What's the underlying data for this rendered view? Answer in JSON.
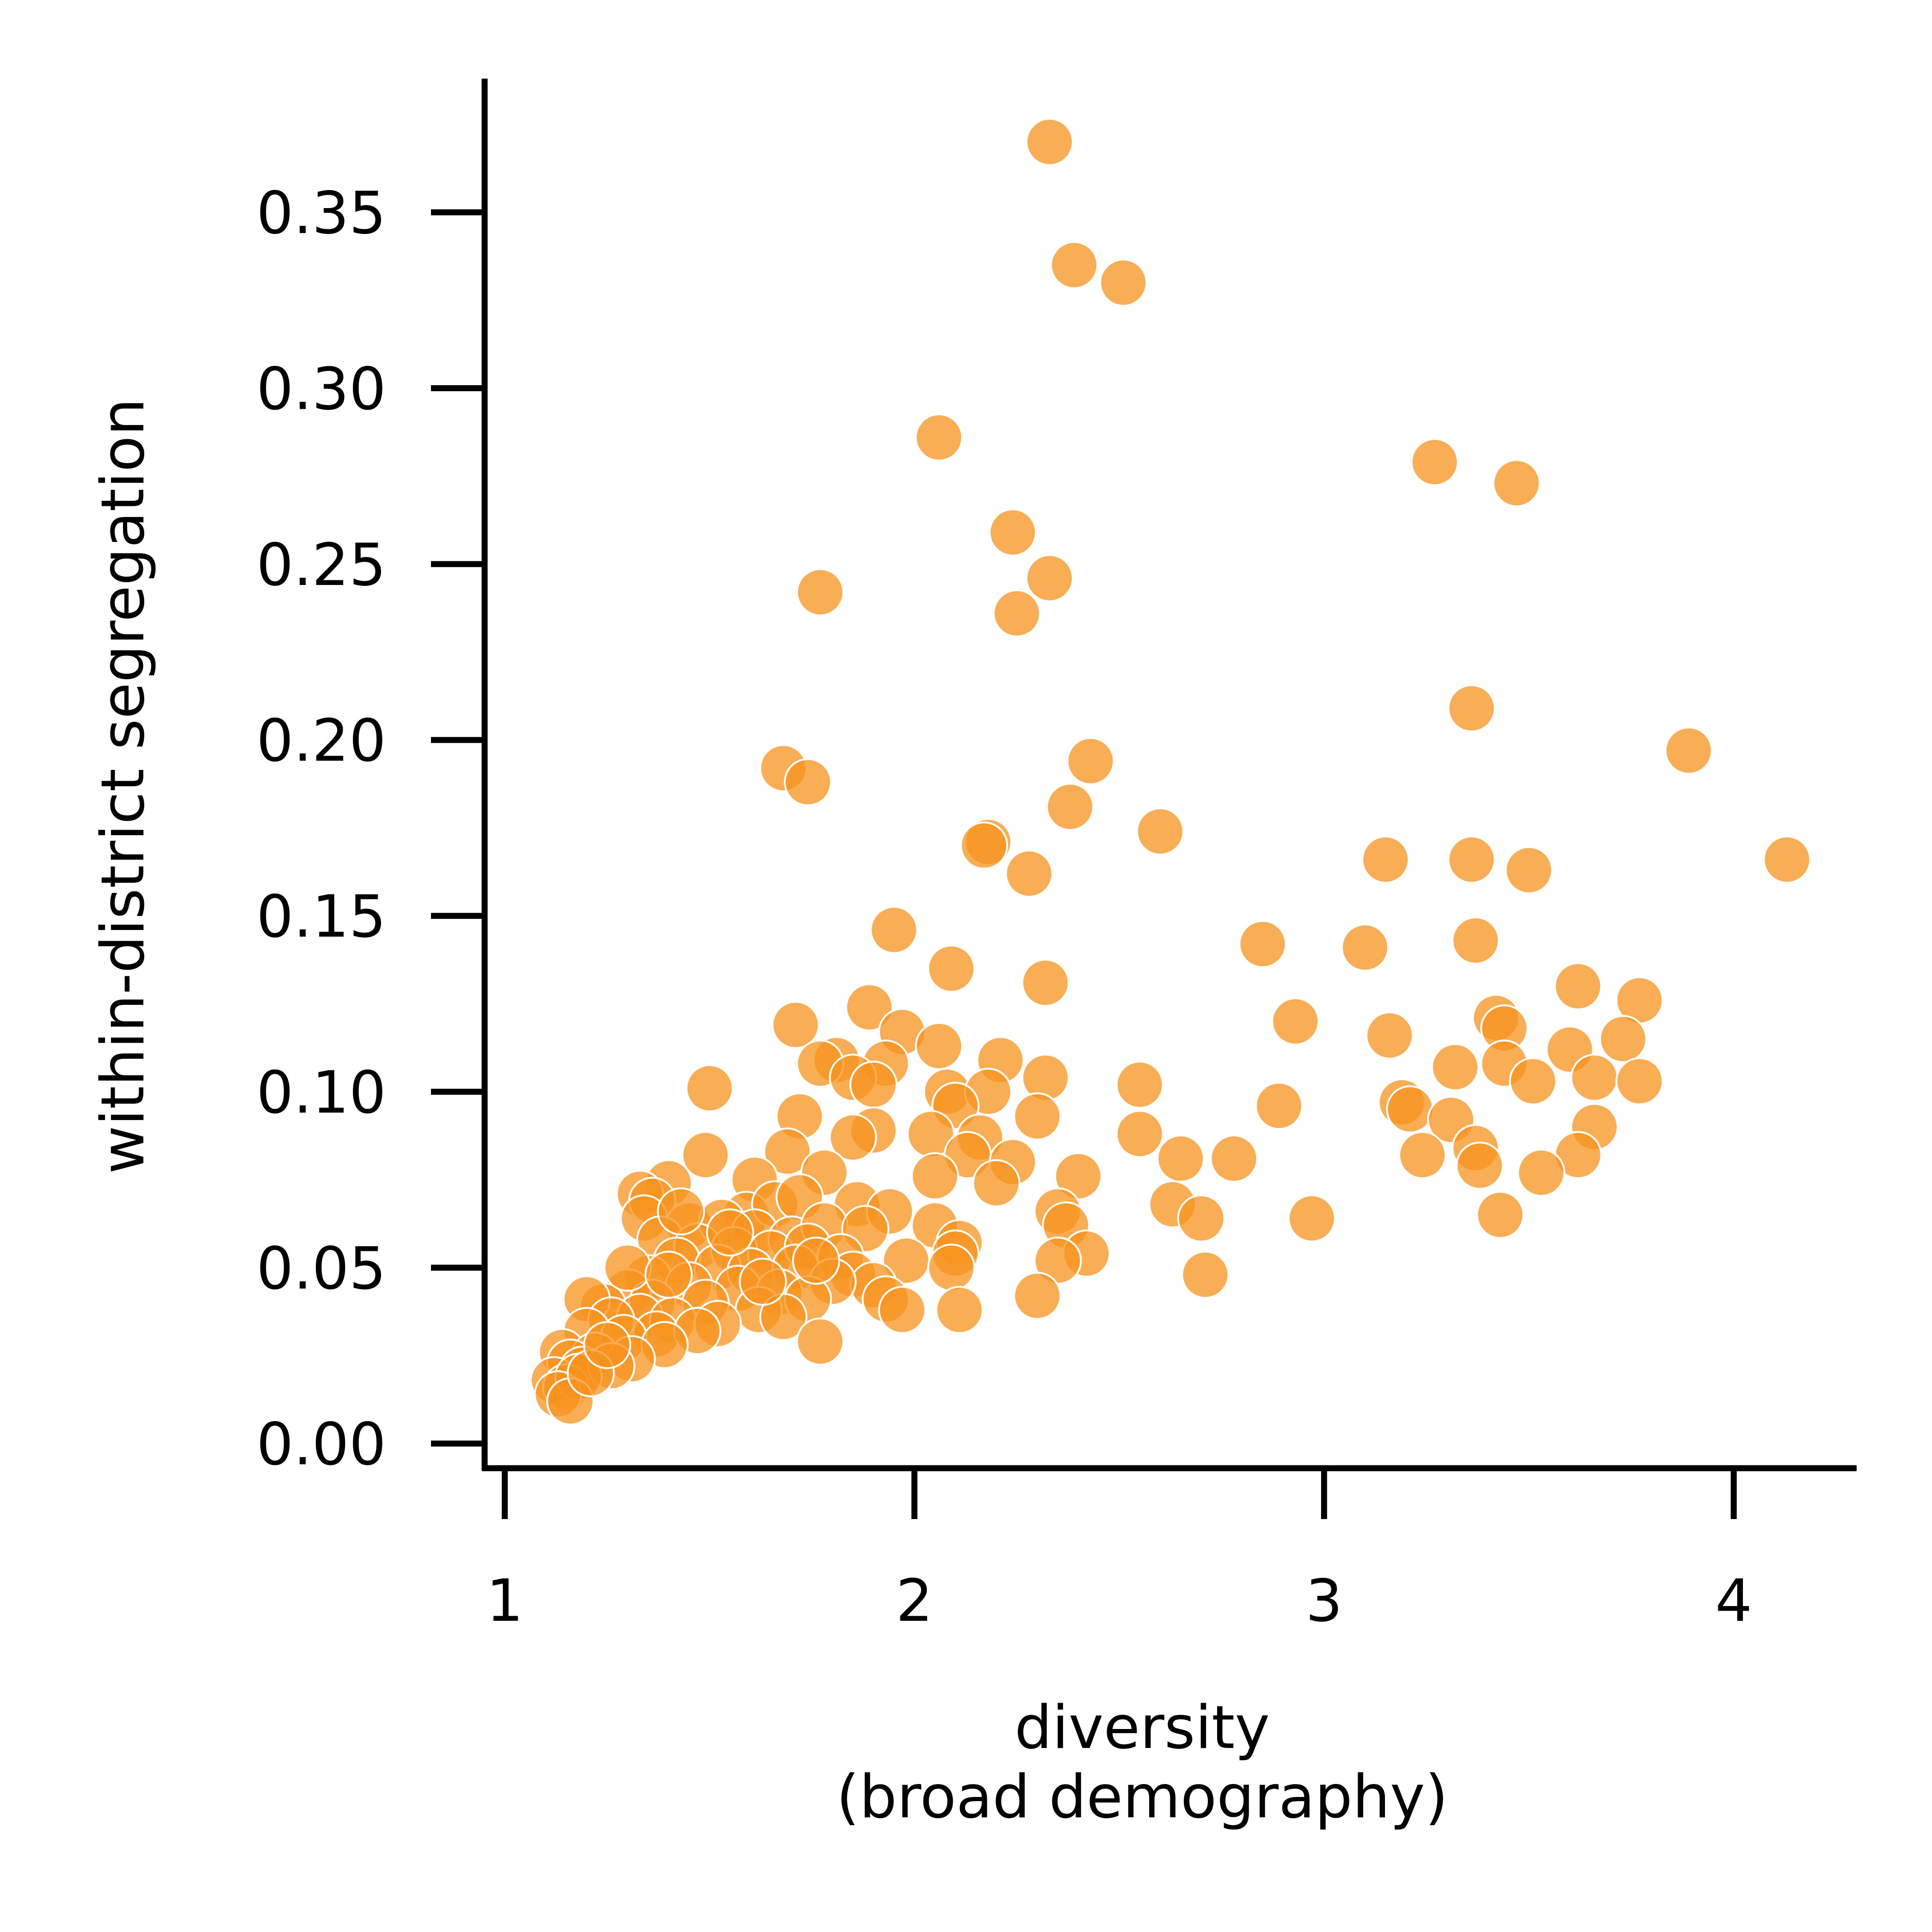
{
  "chart_data": {
    "type": "scatter",
    "title": "",
    "xlabel_lines": [
      "diversity",
      "(broad demography)"
    ],
    "ylabel": "within-district segregation",
    "xlim": [
      0.97,
      4.3
    ],
    "ylim": [
      -0.007,
      0.388
    ],
    "xticks": [
      1,
      2,
      3,
      4
    ],
    "xtick_labels": [
      "1",
      "2",
      "3",
      "4"
    ],
    "yticks": [
      0.0,
      0.05,
      0.1,
      0.15,
      0.2,
      0.25,
      0.3,
      0.35
    ],
    "ytick_labels": [
      "0.00",
      "0.05",
      "0.10",
      "0.15",
      "0.20",
      "0.25",
      "0.30",
      "0.35"
    ],
    "grid": false,
    "legend": "none",
    "colors": {
      "marker_fill": "#f7931e",
      "marker_edge": "#ffffff",
      "axis": "#000000"
    },
    "series": [
      {
        "name": "districts",
        "points": [
          [
            2.33,
            0.37
          ],
          [
            2.39,
            0.335
          ],
          [
            2.51,
            0.33
          ],
          [
            2.06,
            0.286
          ],
          [
            3.27,
            0.279
          ],
          [
            3.47,
            0.273
          ],
          [
            2.24,
            0.259
          ],
          [
            2.33,
            0.246
          ],
          [
            2.25,
            0.236
          ],
          [
            1.77,
            0.242
          ],
          [
            3.36,
            0.209
          ],
          [
            3.89,
            0.197
          ],
          [
            1.68,
            0.192
          ],
          [
            1.74,
            0.188
          ],
          [
            2.43,
            0.194
          ],
          [
            2.38,
            0.181
          ],
          [
            2.6,
            0.174
          ],
          [
            2.18,
            0.171
          ],
          [
            2.17,
            0.17
          ],
          [
            2.28,
            0.162
          ],
          [
            3.15,
            0.166
          ],
          [
            3.36,
            0.166
          ],
          [
            3.5,
            0.163
          ],
          [
            4.13,
            0.166
          ],
          [
            1.95,
            0.146
          ],
          [
            2.09,
            0.135
          ],
          [
            2.85,
            0.142
          ],
          [
            3.1,
            0.141
          ],
          [
            3.37,
            0.143
          ],
          [
            2.32,
            0.131
          ],
          [
            3.62,
            0.13
          ],
          [
            3.77,
            0.126
          ],
          [
            1.89,
            0.124
          ],
          [
            1.71,
            0.119
          ],
          [
            1.97,
            0.117
          ],
          [
            2.93,
            0.12
          ],
          [
            3.42,
            0.121
          ],
          [
            3.16,
            0.116
          ],
          [
            3.44,
            0.118
          ],
          [
            2.06,
            0.113
          ],
          [
            1.81,
            0.109
          ],
          [
            1.93,
            0.108
          ],
          [
            2.21,
            0.109
          ],
          [
            3.6,
            0.112
          ],
          [
            3.73,
            0.115
          ],
          [
            1.77,
            0.108
          ],
          [
            1.85,
            0.104
          ],
          [
            1.9,
            0.102
          ],
          [
            2.08,
            0.1
          ],
          [
            2.32,
            0.104
          ],
          [
            3.32,
            0.107
          ],
          [
            3.44,
            0.108
          ],
          [
            3.51,
            0.103
          ],
          [
            3.66,
            0.104
          ],
          [
            3.77,
            0.103
          ],
          [
            1.5,
            0.101
          ],
          [
            2.55,
            0.102
          ],
          [
            2.18,
            0.1
          ],
          [
            2.1,
            0.096
          ],
          [
            2.89,
            0.096
          ],
          [
            3.19,
            0.097
          ],
          [
            3.21,
            0.095
          ],
          [
            1.72,
            0.093
          ],
          [
            1.9,
            0.089
          ],
          [
            2.04,
            0.088
          ],
          [
            2.16,
            0.087
          ],
          [
            2.3,
            0.093
          ],
          [
            2.55,
            0.088
          ],
          [
            3.31,
            0.092
          ],
          [
            3.66,
            0.09
          ],
          [
            1.85,
            0.087
          ],
          [
            2.13,
            0.082
          ],
          [
            2.24,
            0.08
          ],
          [
            2.65,
            0.081
          ],
          [
            2.78,
            0.081
          ],
          [
            3.24,
            0.082
          ],
          [
            3.37,
            0.084
          ],
          [
            3.62,
            0.082
          ],
          [
            1.49,
            0.082
          ],
          [
            1.69,
            0.083
          ],
          [
            1.78,
            0.077
          ],
          [
            1.61,
            0.075
          ],
          [
            2.05,
            0.076
          ],
          [
            2.2,
            0.074
          ],
          [
            2.4,
            0.076
          ],
          [
            3.38,
            0.079
          ],
          [
            3.53,
            0.077
          ],
          [
            1.4,
            0.074
          ],
          [
            1.33,
            0.071
          ],
          [
            1.36,
            0.069
          ],
          [
            1.59,
            0.065
          ],
          [
            1.66,
            0.068
          ],
          [
            1.72,
            0.07
          ],
          [
            1.86,
            0.068
          ],
          [
            1.94,
            0.066
          ],
          [
            2.63,
            0.068
          ],
          [
            2.7,
            0.064
          ],
          [
            2.97,
            0.064
          ],
          [
            3.43,
            0.065
          ],
          [
            2.35,
            0.066
          ],
          [
            2.37,
            0.062
          ],
          [
            1.34,
            0.064
          ],
          [
            1.45,
            0.062
          ],
          [
            1.53,
            0.063
          ],
          [
            1.61,
            0.06
          ],
          [
            1.7,
            0.058
          ],
          [
            1.78,
            0.062
          ],
          [
            1.88,
            0.061
          ],
          [
            2.05,
            0.062
          ],
          [
            2.11,
            0.057
          ],
          [
            1.38,
            0.058
          ],
          [
            1.47,
            0.056
          ],
          [
            1.56,
            0.055
          ],
          [
            1.65,
            0.054
          ],
          [
            1.74,
            0.056
          ],
          [
            1.82,
            0.053
          ],
          [
            1.98,
            0.052
          ],
          [
            2.1,
            0.054
          ],
          [
            2.42,
            0.054
          ],
          [
            2.35,
            0.052
          ],
          [
            1.42,
            0.052
          ],
          [
            1.52,
            0.05
          ],
          [
            1.6,
            0.049
          ],
          [
            1.71,
            0.05
          ],
          [
            1.85,
            0.048
          ],
          [
            1.9,
            0.045
          ],
          [
            2.09,
            0.05
          ],
          [
            2.71,
            0.048
          ],
          [
            1.35,
            0.047
          ],
          [
            1.45,
            0.045
          ],
          [
            1.57,
            0.044
          ],
          [
            1.67,
            0.043
          ],
          [
            1.8,
            0.046
          ],
          [
            1.93,
            0.041
          ],
          [
            2.3,
            0.042
          ],
          [
            1.3,
            0.043
          ],
          [
            1.36,
            0.04
          ],
          [
            1.49,
            0.04
          ],
          [
            1.62,
            0.038
          ],
          [
            1.74,
            0.041
          ],
          [
            1.97,
            0.038
          ],
          [
            2.11,
            0.038
          ],
          [
            1.24,
            0.039
          ],
          [
            1.33,
            0.036
          ],
          [
            1.41,
            0.035
          ],
          [
            1.52,
            0.034
          ],
          [
            1.68,
            0.036
          ],
          [
            1.2,
            0.041
          ],
          [
            1.26,
            0.035
          ],
          [
            1.37,
            0.031
          ],
          [
            1.47,
            0.032
          ],
          [
            1.77,
            0.029
          ],
          [
            1.2,
            0.032
          ],
          [
            1.29,
            0.03
          ],
          [
            1.39,
            0.028
          ],
          [
            1.14,
            0.026
          ],
          [
            1.22,
            0.025
          ],
          [
            1.31,
            0.024
          ],
          [
            1.16,
            0.023
          ],
          [
            1.19,
            0.021
          ],
          [
            1.26,
            0.022
          ],
          [
            1.12,
            0.018
          ],
          [
            1.15,
            0.016
          ],
          [
            1.18,
            0.019
          ],
          [
            1.13,
            0.014
          ],
          [
            1.16,
            0.012
          ],
          [
            1.21,
            0.02
          ],
          [
            1.25,
            0.028
          ],
          [
            1.3,
            0.05
          ],
          [
            1.4,
            0.048
          ],
          [
            1.55,
            0.06
          ],
          [
            1.43,
            0.066
          ],
          [
            1.63,
            0.046
          ],
          [
            1.76,
            0.052
          ]
        ]
      }
    ]
  }
}
